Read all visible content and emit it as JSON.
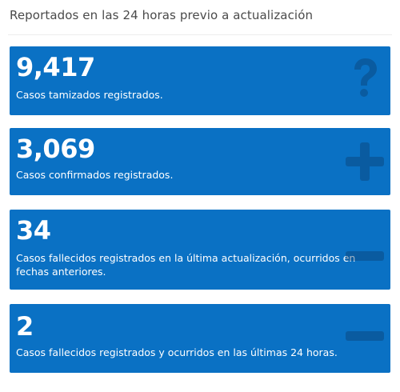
{
  "header": {
    "title": "Reportados en las 24 horas previo a actualización"
  },
  "colors": {
    "card_background": "#0a71c4",
    "icon_color": "#0b3a66",
    "title_text": "#4a4a4a"
  },
  "cards": [
    {
      "value": "9,417",
      "label": "Casos tamizados registrados.",
      "icon": "question-mark-icon"
    },
    {
      "value": "3,069",
      "label": "Casos confirmados registrados.",
      "icon": "plus-icon"
    },
    {
      "value": "34",
      "label": "Casos fallecidos registrados en la última actualización, ocurridos en fechas anteriores.",
      "icon": "minus-icon"
    },
    {
      "value": "2",
      "label": "Casos fallecidos registrados y ocurridos en las últimas 24 horas.",
      "icon": "minus-icon"
    }
  ]
}
